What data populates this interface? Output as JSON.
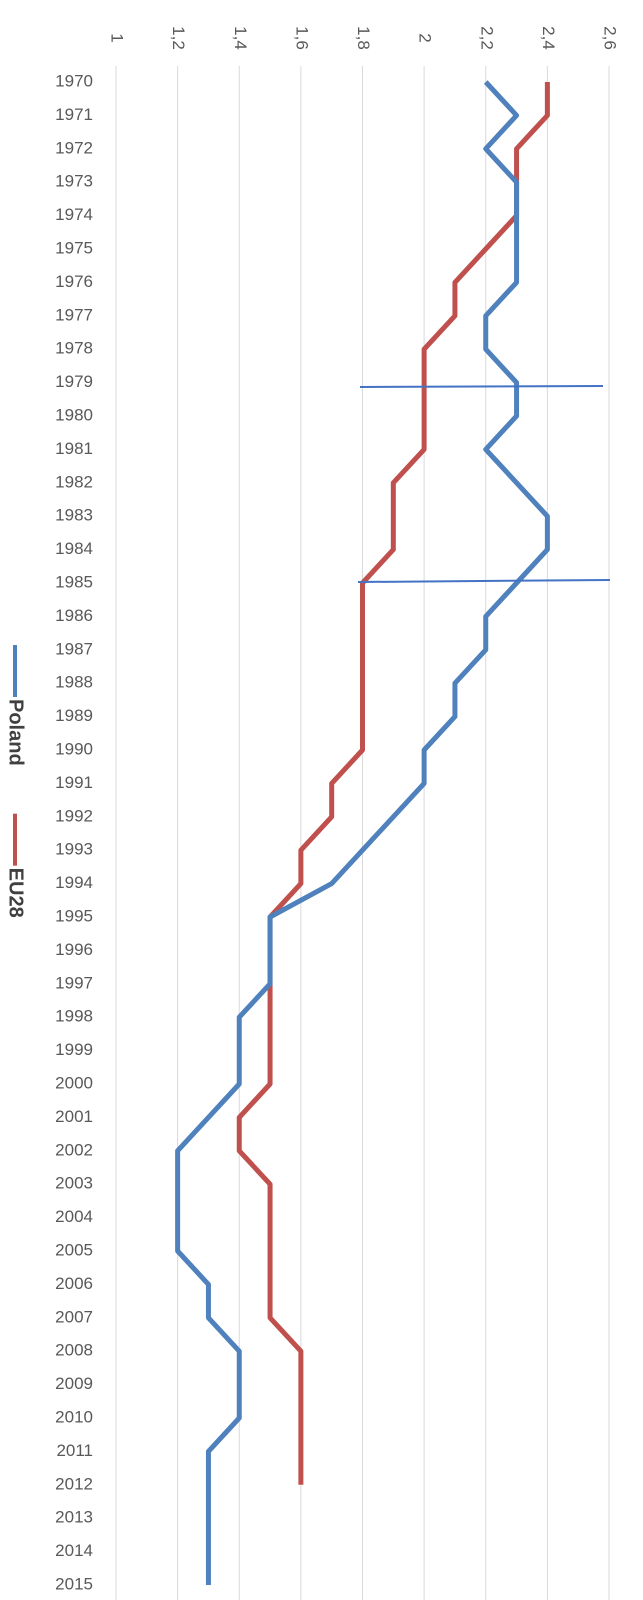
{
  "chart_data": {
    "type": "line",
    "orientation": "horizontal",
    "categories": [
      "1970",
      "1971",
      "1972",
      "1973",
      "1974",
      "1975",
      "1976",
      "1977",
      "1978",
      "1979",
      "1980",
      "1981",
      "1982",
      "1983",
      "1984",
      "1985",
      "1986",
      "1987",
      "1988",
      "1989",
      "1990",
      "1991",
      "1992",
      "1993",
      "1994",
      "1995",
      "1996",
      "1997",
      "1998",
      "1999",
      "2000",
      "2001",
      "2002",
      "2003",
      "2004",
      "2005",
      "2006",
      "2007",
      "2008",
      "2009",
      "2010",
      "2011",
      "2012",
      "2013",
      "2014",
      "2015"
    ],
    "series": [
      {
        "name": "Poland",
        "color": "#4f81bd",
        "values": [
          2.2,
          2.3,
          2.2,
          2.3,
          2.3,
          2.3,
          2.3,
          2.2,
          2.2,
          2.3,
          2.3,
          2.2,
          2.3,
          2.4,
          2.4,
          2.3,
          2.2,
          2.2,
          2.1,
          2.1,
          2.0,
          2.0,
          1.9,
          1.8,
          1.7,
          1.5,
          1.5,
          1.5,
          1.4,
          1.4,
          1.4,
          1.3,
          1.2,
          1.2,
          1.2,
          1.2,
          1.3,
          1.3,
          1.4,
          1.4,
          1.4,
          1.3,
          1.3,
          1.3,
          1.3,
          1.3
        ]
      },
      {
        "name": "EU28",
        "color": "#c0504d",
        "values": [
          2.4,
          2.4,
          2.3,
          2.3,
          2.3,
          2.2,
          2.1,
          2.1,
          2.0,
          2.0,
          2.0,
          2.0,
          1.9,
          1.9,
          1.9,
          1.8,
          1.8,
          1.8,
          1.8,
          1.8,
          1.8,
          1.7,
          1.7,
          1.6,
          1.6,
          1.5,
          1.5,
          1.5,
          1.5,
          1.5,
          1.5,
          1.4,
          1.4,
          1.5,
          1.5,
          1.5,
          1.5,
          1.5,
          1.6,
          1.6,
          1.6,
          1.6,
          1.6,
          null,
          null,
          null
        ]
      }
    ],
    "xlim": [
      1,
      2.6
    ],
    "xticks": [
      1,
      {
        "value": 1.2,
        "label": "1,2"
      },
      {
        "value": 1.4,
        "label": "1,4"
      },
      {
        "value": 1.6,
        "label": "1,6"
      },
      {
        "value": 1.8,
        "label": "1,8"
      },
      2,
      {
        "value": 2.2,
        "label": "2,2"
      },
      {
        "value": 2.4,
        "label": "2,4"
      },
      {
        "value": 2.6,
        "label": "2,6"
      }
    ],
    "grid": true,
    "legend": "left"
  }
}
